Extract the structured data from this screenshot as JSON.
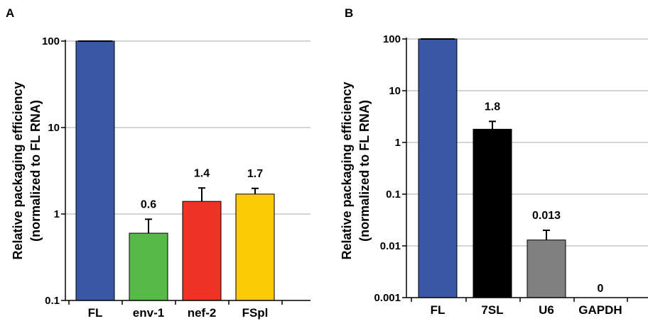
{
  "chart_data": [
    {
      "panel": "A",
      "type": "bar",
      "ylabel": "Relative packaging efficiency",
      "ylabel_line2": "(normalized to FL RNA)",
      "yscale": "log",
      "ylim": [
        0.1,
        100
      ],
      "yticks": [
        0.1,
        1,
        10,
        100
      ],
      "ytick_labels": [
        "0.1",
        "1",
        "10",
        "100"
      ],
      "categories": [
        "FL",
        "env-1",
        "nef-2",
        "FSpl"
      ],
      "values": [
        100,
        0.6,
        1.4,
        1.7
      ],
      "error_upper": [
        100,
        0.87,
        2.0,
        1.98
      ],
      "data_labels": [
        "",
        "0.6",
        "1.4",
        "1.7"
      ],
      "colors": [
        "#3a57a6",
        "#57b947",
        "#ee3424",
        "#fdca08"
      ],
      "grid": true
    },
    {
      "panel": "B",
      "type": "bar",
      "ylabel": "Relative packaging efficiency",
      "ylabel_line2": "(normalized to FL RNA)",
      "yscale": "log",
      "ylim": [
        0.001,
        100
      ],
      "yticks": [
        0.001,
        0.01,
        0.1,
        1,
        10,
        100
      ],
      "ytick_labels": [
        "0.001",
        "0.01",
        "0.1",
        "1",
        "10",
        "100"
      ],
      "categories": [
        "FL",
        "7SL",
        "U6",
        "GAPDH"
      ],
      "values": [
        100,
        1.8,
        0.013,
        0
      ],
      "error_upper": [
        100,
        2.55,
        0.02,
        0
      ],
      "data_labels": [
        "",
        "1.8",
        "0.013",
        "0"
      ],
      "colors": [
        "#3a57a6",
        "#000000",
        "#808080",
        "#ffffff"
      ],
      "grid": true
    }
  ]
}
